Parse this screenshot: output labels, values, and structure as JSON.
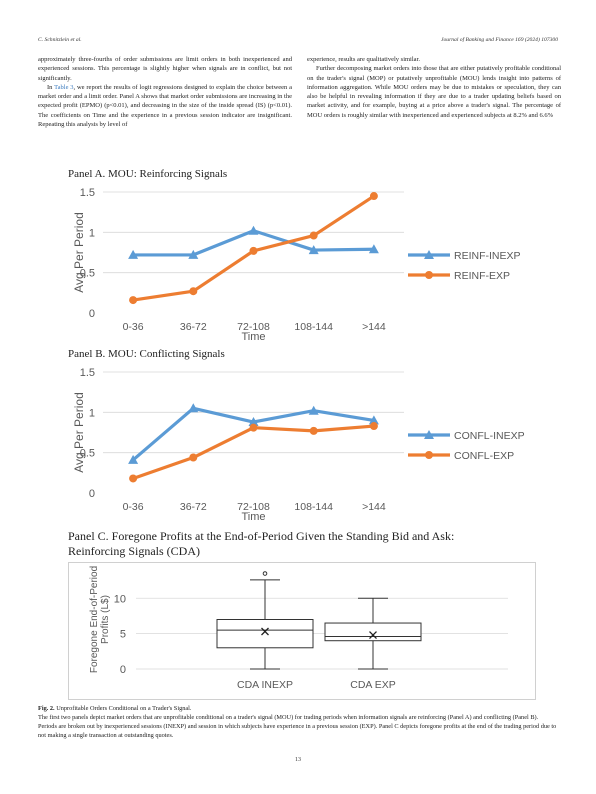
{
  "header": {
    "left": "C. Schnitzlein et al.",
    "right": "Journal of Banking and Finance 169 (2024) 107300"
  },
  "text": {
    "left_p1": "approximately three-fourths of order submissions are limit orders in both inexperienced and experienced sessions. This percentage is slightly higher when signals are in conflict, but not significantly.",
    "left_p2_pre": "In ",
    "left_p2_link": "Table 3",
    "left_p2_post": ", we report the results of logit regressions designed to explain the choice between a market order and a limit order. Panel A shows that market order submissions are increasing in the expected profit (EPMO) (p<0.01), and decreasing in the size of the inside spread (IS) (p<0.01). The coefficients on Time and the experience in a previous session indicator are insignificant. Repeating this analysis by level of",
    "right_p1": "experience, results are qualitatively similar.",
    "right_p2": "Further decomposing market orders into those that are either putatively profitable conditional on the trader's signal (MOP) or putatively unprofitable (MOU) lends insight into patterns of information aggregation. While MOU orders may be due to mistakes or speculation, they can also be helpful in revealing information if they are due to a trader updating beliefs based on market activity, and for example, buying at a price above a trader's signal. The percentage of MOU orders is roughly similar with inexperienced and experienced subjects at 8.2% and 6.6%"
  },
  "panels": {
    "a_title": "Panel A. MOU: Reinforcing Signals",
    "b_title": "Panel B.   MOU: Conflicting Signals",
    "c_title_1": "Panel C.  Foregone Profits at the End-of-Period Given the Standing Bid and Ask:",
    "c_title_2": "Reinforcing Signals (CDA)"
  },
  "chart_data": [
    {
      "type": "line",
      "categories": [
        "0-36",
        "36-72",
        "72-108",
        "108-144",
        ">144"
      ],
      "xlabel": "Time",
      "ylabel": "Avg Per Period",
      "yticks": [
        "0",
        "0.5",
        "1",
        "1.5"
      ],
      "ylim": [
        0,
        1.5
      ],
      "legend": "right",
      "series": [
        {
          "name": "REINF-INEXP",
          "color": "#5b9bd5",
          "marker": "triangle",
          "values": [
            0.72,
            0.72,
            1.02,
            0.78,
            0.79
          ]
        },
        {
          "name": "REINF-EXP",
          "color": "#ed7d31",
          "marker": "circle",
          "values": [
            0.16,
            0.27,
            0.77,
            0.96,
            1.45
          ]
        }
      ]
    },
    {
      "type": "line",
      "categories": [
        "0-36",
        "36-72",
        "72-108",
        "108-144",
        ">144"
      ],
      "xlabel": "Time",
      "ylabel": "Avg Per Period",
      "yticks": [
        "0",
        "0.5",
        "1",
        "1.5"
      ],
      "ylim": [
        0,
        1.5
      ],
      "legend": "right",
      "series": [
        {
          "name": "CONFL-INEXP",
          "color": "#5b9bd5",
          "marker": "triangle",
          "values": [
            0.41,
            1.05,
            0.88,
            1.02,
            0.9
          ]
        },
        {
          "name": "CONFL-EXP",
          "color": "#ed7d31",
          "marker": "circle",
          "values": [
            0.18,
            0.44,
            0.81,
            0.77,
            0.83
          ]
        }
      ]
    },
    {
      "type": "box",
      "categories": [
        "CDA INEXP",
        "CDA EXP"
      ],
      "ylabel": "Foregone End-of-Period Profits (L$)",
      "yticks": [
        "0",
        "5",
        "10"
      ],
      "ylim": [
        0,
        14
      ],
      "boxes": [
        {
          "min": 0,
          "q1": 3,
          "median": 5.5,
          "q3": 7,
          "max": 12.6,
          "mean": 5.3,
          "outliers": [
            13.5
          ]
        },
        {
          "min": 0,
          "q1": 4,
          "median": 4.6,
          "q3": 6.5,
          "max": 10,
          "mean": 4.8,
          "outliers": []
        }
      ]
    }
  ],
  "caption": {
    "label": "Fig. 2.",
    "title": "Unprofitable Orders Conditional on a Trader's Signal.",
    "body": "The first two panels depict market orders that are unprofitable conditional on a trader's signal (MOU) for trading periods when information signals are reinforcing (Panel A) and conflicting (Panel B). Periods are broken out by inexperienced sessions (INEXP) and session in which subjects have experience in a previous session (EXP). Panel C depicts foregone profits at the end of the trading period due to not making a single transaction at outstanding quotes."
  },
  "page_number": "13"
}
